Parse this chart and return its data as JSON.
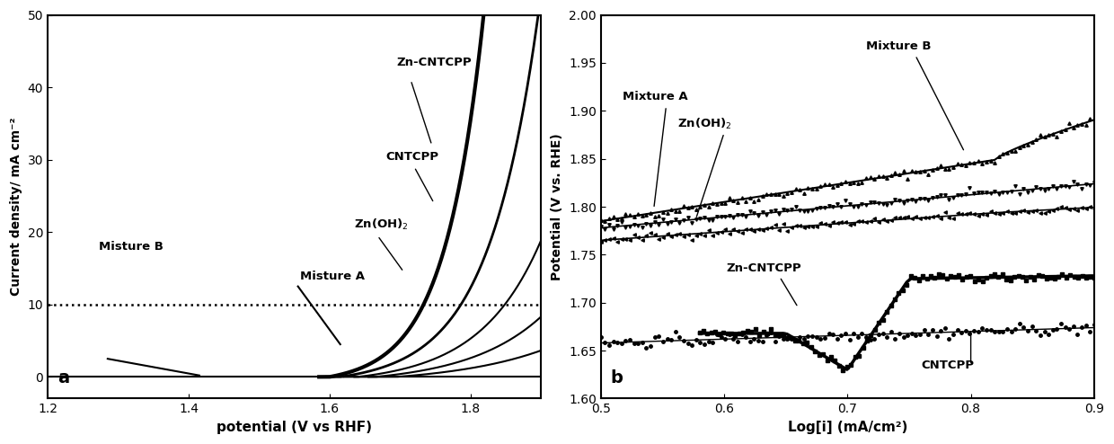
{
  "panel_a": {
    "xlim": [
      1.2,
      1.9
    ],
    "ylim": [
      -3,
      50
    ],
    "yticks": [
      0,
      10,
      20,
      30,
      40,
      50
    ],
    "xticks": [
      1.2,
      1.4,
      1.6,
      1.8
    ],
    "xlabel": "potential (V vs RHF)",
    "ylabel": "Current density/ mA cm⁻²",
    "label": "a",
    "dotted_line_y": 10
  },
  "panel_b": {
    "xlim": [
      0.5,
      0.9
    ],
    "ylim": [
      1.6,
      2.0
    ],
    "xticks": [
      0.5,
      0.6,
      0.7,
      0.8,
      0.9
    ],
    "yticks": [
      1.6,
      1.65,
      1.7,
      1.75,
      1.8,
      1.85,
      1.9,
      1.95,
      2.0
    ],
    "xlabel": "Log[i] (mA/cm²)",
    "ylabel": "Potential (V vs. RHE)",
    "label": "b"
  }
}
